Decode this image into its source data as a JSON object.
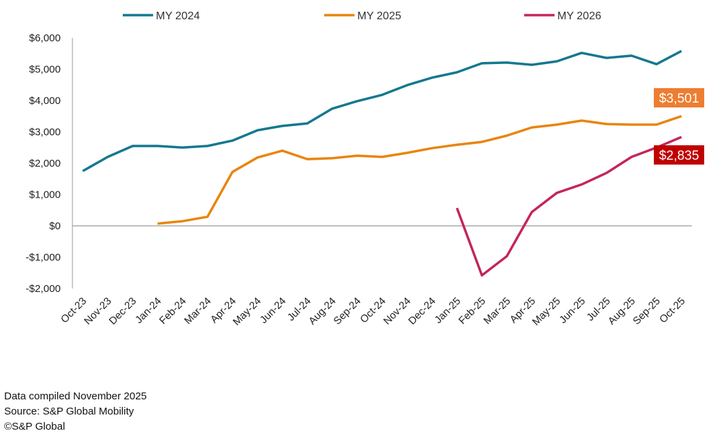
{
  "chart_data": {
    "type": "line",
    "categories": [
      "Oct-23",
      "Nov-23",
      "Dec-23",
      "Jan-24",
      "Feb-24",
      "Mar-24",
      "Apr-24",
      "May-24",
      "Jun-24",
      "Jul-24",
      "Aug-24",
      "Sep-24",
      "Oct-24",
      "Nov-24",
      "Dec-24",
      "Jan-25",
      "Feb-25",
      "Mar-25",
      "Apr-25",
      "May-25",
      "Jun-25",
      "Jul-25",
      "Aug-25",
      "Sep-25",
      "Oct-25"
    ],
    "ylim": [
      -2000,
      6000
    ],
    "yticks": [
      -2000,
      -1000,
      0,
      1000,
      2000,
      3000,
      4000,
      5000,
      6000
    ],
    "ytick_labels": [
      "-$2,000",
      "-$1,000",
      "$0",
      "$1,000",
      "$2,000",
      "$3,000",
      "$4,000",
      "$5,000",
      "$6,000"
    ],
    "grid": false,
    "legend": "top",
    "series": [
      {
        "name": "MY 2024",
        "color": "#14788F",
        "values": [
          1750,
          2200,
          2550,
          2550,
          2500,
          2550,
          2720,
          3050,
          3190,
          3270,
          3740,
          3980,
          4180,
          4490,
          4730,
          4900,
          5190,
          5210,
          5140,
          5250,
          5520,
          5360,
          5430,
          5160,
          5580
        ]
      },
      {
        "name": "MY 2025",
        "color": "#E8850E",
        "values": [
          null,
          null,
          null,
          70,
          150,
          290,
          1720,
          2180,
          2400,
          2130,
          2160,
          2240,
          2200,
          2330,
          2480,
          2590,
          2680,
          2880,
          3140,
          3230,
          3360,
          3250,
          3230,
          3230,
          3501
        ]
      },
      {
        "name": "MY 2026",
        "color": "#C4255A",
        "values": [
          null,
          null,
          null,
          null,
          null,
          null,
          null,
          null,
          null,
          null,
          null,
          null,
          null,
          null,
          null,
          570,
          -1580,
          -970,
          440,
          1050,
          1320,
          1690,
          2200,
          2500,
          2835
        ]
      }
    ],
    "annotations": [
      {
        "text": "$3,501",
        "series": "MY 2025",
        "color": "#ED7D31"
      },
      {
        "text": "$2,835",
        "series": "MY 2026",
        "color": "#C00000"
      }
    ]
  },
  "footer": {
    "line1": "Data compiled November 2025",
    "line2": "Source: S&P Global Mobility",
    "line3": "©S&P Global"
  }
}
